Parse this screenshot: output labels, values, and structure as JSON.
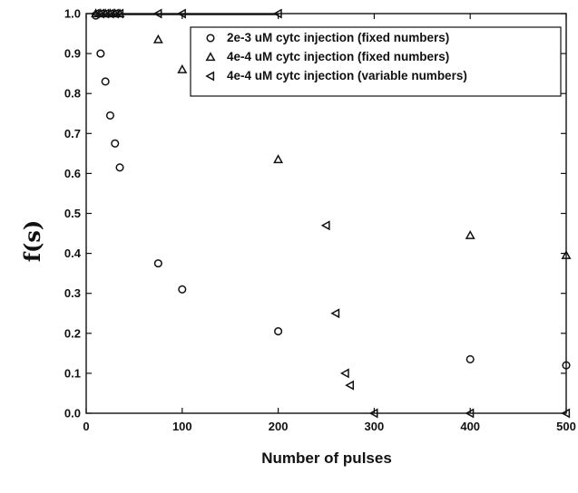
{
  "chart_data": {
    "type": "scatter",
    "xlabel": "Number of pulses",
    "ylabel": "f(s)",
    "xlim": [
      0,
      500
    ],
    "ylim": [
      0,
      1.0
    ],
    "x_ticks": [
      "0",
      "100",
      "200",
      "300",
      "400",
      "500"
    ],
    "y_ticks": [
      "0.0",
      "0.1",
      "0.2",
      "0.3",
      "0.4",
      "0.5",
      "0.6",
      "0.7",
      "0.8",
      "0.9",
      "1.0"
    ],
    "grid": false,
    "legend_position": "top-right",
    "series": [
      {
        "name": "2e-3 uM cytc injection (fixed numbers)",
        "marker": "circle",
        "x": [
          10,
          15,
          20,
          25,
          30,
          35,
          75,
          100,
          200,
          400,
          500
        ],
        "y": [
          0.995,
          0.9,
          0.83,
          0.745,
          0.675,
          0.615,
          0.375,
          0.31,
          0.205,
          0.135,
          0.12
        ]
      },
      {
        "name": "4e-4 uM cytc injection (fixed numbers)",
        "marker": "triangle-up",
        "x": [
          10,
          15,
          20,
          25,
          30,
          35,
          75,
          100,
          200,
          400,
          500
        ],
        "y": [
          1.0,
          1.0,
          1.0,
          1.0,
          1.0,
          1.0,
          0.935,
          0.86,
          0.635,
          0.445,
          0.395
        ]
      },
      {
        "name": "4e-4 uM cytc injection (variable numbers)",
        "marker": "triangle-left",
        "x": [
          10,
          15,
          20,
          25,
          30,
          35,
          75,
          100,
          200,
          250,
          260,
          270,
          275,
          300,
          400,
          500
        ],
        "y": [
          1.0,
          1.0,
          1.0,
          1.0,
          1.0,
          1.0,
          1.0,
          1.0,
          1.0,
          0.47,
          0.25,
          0.1,
          0.07,
          0.0,
          0.0,
          0.0
        ]
      }
    ]
  }
}
